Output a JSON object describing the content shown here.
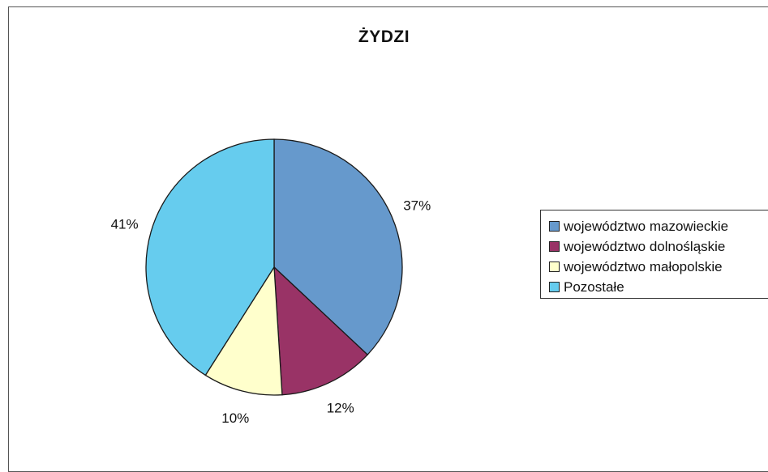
{
  "chart_data": {
    "type": "pie",
    "title": "ŻYDZI",
    "slices": [
      {
        "label": "województwo mazowieckie",
        "value": 37,
        "value_label": "37%",
        "color": "#6699cc"
      },
      {
        "label": "województwo dolnośląskie",
        "value": 12,
        "value_label": "12%",
        "color": "#993366"
      },
      {
        "label": "województwo małopolskie",
        "value": 10,
        "value_label": "10%",
        "color": "#ffffcc"
      },
      {
        "label": "Pozostałe",
        "value": 41,
        "value_label": "41%",
        "color": "#66ccee"
      }
    ],
    "start_angle_deg": 0,
    "direction": "clockwise",
    "legend_position": "right"
  }
}
